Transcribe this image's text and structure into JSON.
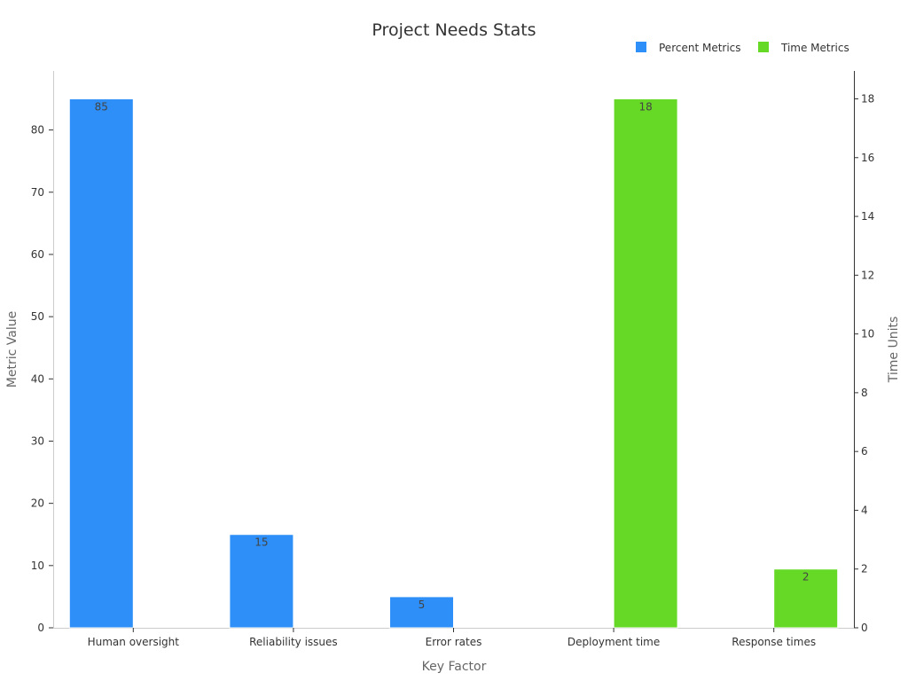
{
  "chart_data": {
    "type": "bar",
    "title": "Project Needs Stats",
    "xlabel": "Key Factor",
    "ylabel": "Metric Value",
    "y2label": "Time Units",
    "categories": [
      "Human oversight",
      "Reliability issues",
      "Error rates",
      "Deployment time",
      "Response times"
    ],
    "ylim": [
      0,
      89
    ],
    "y2lim": [
      0,
      18.9
    ],
    "yticks": [
      0,
      10,
      20,
      30,
      40,
      50,
      60,
      70,
      80
    ],
    "y2ticks": [
      0,
      2,
      4,
      6,
      8,
      10,
      12,
      14,
      16,
      18
    ],
    "legend_position": "top-right",
    "grid": false,
    "series": [
      {
        "name": "Percent Metrics",
        "axis": "left",
        "color": "#2d8ff7",
        "values": [
          85,
          15,
          5,
          null,
          null
        ],
        "labels": [
          "85",
          "15",
          "5",
          "",
          ""
        ]
      },
      {
        "name": "Time Metrics",
        "axis": "right",
        "color": "#66d926",
        "values": [
          null,
          null,
          null,
          18,
          2
        ],
        "labels": [
          "",
          "",
          "",
          "18",
          "2"
        ]
      }
    ]
  }
}
